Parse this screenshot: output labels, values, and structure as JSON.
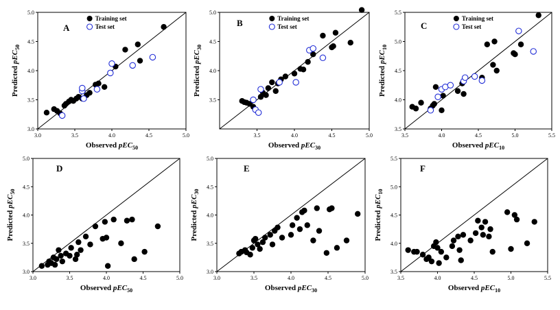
{
  "chart_data": [
    {
      "panel": "A",
      "type": "scatter",
      "xlabel_main": "Observed",
      "xlabel_em": "pEC",
      "xlabel_sub": "50",
      "ylabel_main": "Predicted",
      "ylabel_em": "pEC",
      "ylabel_sub": "50",
      "xlim": [
        3.0,
        5.0
      ],
      "ylim": [
        3.0,
        5.0
      ],
      "xticks": [
        "3.0",
        "3.5",
        "4.0",
        "4.5",
        "5.0"
      ],
      "yticks": [
        "3.0",
        "3.5",
        "4.0",
        "4.5",
        "5.0"
      ],
      "diagonal": true,
      "legend": "top-left",
      "series": [
        {
          "name": "Training set",
          "marker": "filled",
          "points": [
            [
              3.12,
              3.28
            ],
            [
              3.22,
              3.34
            ],
            [
              3.26,
              3.31
            ],
            [
              3.3,
              3.27
            ],
            [
              3.36,
              3.4
            ],
            [
              3.38,
              3.43
            ],
            [
              3.42,
              3.47
            ],
            [
              3.45,
              3.5
            ],
            [
              3.48,
              3.48
            ],
            [
              3.52,
              3.52
            ],
            [
              3.55,
              3.55
            ],
            [
              3.6,
              3.52
            ],
            [
              3.66,
              3.58
            ],
            [
              3.7,
              3.62
            ],
            [
              3.78,
              3.76
            ],
            [
              3.82,
              3.78
            ],
            [
              3.9,
              3.72
            ],
            [
              4.05,
              4.07
            ],
            [
              4.18,
              4.36
            ],
            [
              4.35,
              4.45
            ],
            [
              4.38,
              4.17
            ],
            [
              4.7,
              4.75
            ]
          ]
        },
        {
          "name": "Test set",
          "marker": "open",
          "points": [
            [
              3.33,
              3.23
            ],
            [
              3.6,
              3.65
            ],
            [
              3.6,
              3.7
            ],
            [
              3.62,
              3.52
            ],
            [
              3.8,
              3.68
            ],
            [
              3.98,
              3.96
            ],
            [
              4.0,
              4.12
            ],
            [
              4.28,
              4.09
            ],
            [
              4.55,
              4.23
            ]
          ]
        }
      ]
    },
    {
      "panel": "B",
      "type": "scatter",
      "xlabel_main": "Observed",
      "xlabel_em": "pEC",
      "xlabel_sub": "30",
      "ylabel_main": "Predicted",
      "ylabel_em": "pEC",
      "ylabel_sub": "30",
      "xlim": [
        3.0,
        5.0
      ],
      "ylim": [
        3.0,
        5.0
      ],
      "xticks": [
        "3.5",
        "4.0",
        "4.5",
        "5.0"
      ],
      "yticks": [
        "3.5",
        "4.0",
        "4.5",
        "5.0"
      ],
      "diagonal": true,
      "legend": "top-left",
      "series": [
        {
          "name": "Training set",
          "marker": "filled",
          "points": [
            [
              3.3,
              3.48
            ],
            [
              3.33,
              3.46
            ],
            [
              3.36,
              3.45
            ],
            [
              3.4,
              3.43
            ],
            [
              3.45,
              3.38
            ],
            [
              3.55,
              3.55
            ],
            [
              3.58,
              3.62
            ],
            [
              3.62,
              3.58
            ],
            [
              3.65,
              3.7
            ],
            [
              3.7,
              3.8
            ],
            [
              3.75,
              3.65
            ],
            [
              3.78,
              3.78
            ],
            [
              3.82,
              3.85
            ],
            [
              3.88,
              3.9
            ],
            [
              4.0,
              3.95
            ],
            [
              4.08,
              4.03
            ],
            [
              4.12,
              4.02
            ],
            [
              4.18,
              4.15
            ],
            [
              4.25,
              4.28
            ],
            [
              4.38,
              4.6
            ],
            [
              4.5,
              4.4
            ],
            [
              4.52,
              4.42
            ],
            [
              4.55,
              4.65
            ],
            [
              4.75,
              4.48
            ],
            [
              4.9,
              5.04
            ]
          ]
        },
        {
          "name": "Test set",
          "marker": "open",
          "points": [
            [
              3.45,
              3.5
            ],
            [
              3.48,
              3.33
            ],
            [
              3.52,
              3.28
            ],
            [
              3.55,
              3.68
            ],
            [
              3.8,
              3.8
            ],
            [
              4.02,
              3.8
            ],
            [
              4.2,
              4.35
            ],
            [
              4.25,
              4.38
            ],
            [
              4.38,
              4.22
            ]
          ]
        }
      ]
    },
    {
      "panel": "C",
      "type": "scatter",
      "xlabel_main": "Observed",
      "xlabel_em": "pEC",
      "xlabel_sub": "10",
      "ylabel_main": "Predicted",
      "ylabel_em": "pEC",
      "ylabel_sub": "10",
      "xlim": [
        3.5,
        5.5
      ],
      "ylim": [
        3.5,
        5.5
      ],
      "xticks": [
        "3.5",
        "4.0",
        "4.5",
        "5.0",
        "5.5"
      ],
      "yticks": [
        "3.5",
        "4.0",
        "4.5",
        "5.0",
        "5.5"
      ],
      "diagonal": true,
      "legend": "top-left",
      "series": [
        {
          "name": "Training set",
          "marker": "filled",
          "points": [
            [
              3.6,
              3.88
            ],
            [
              3.65,
              3.85
            ],
            [
              3.72,
              3.95
            ],
            [
              3.85,
              3.85
            ],
            [
              3.88,
              3.9
            ],
            [
              3.9,
              3.93
            ],
            [
              3.92,
              4.22
            ],
            [
              4.0,
              3.82
            ],
            [
              4.02,
              4.07
            ],
            [
              4.22,
              4.15
            ],
            [
              4.28,
              4.28
            ],
            [
              4.3,
              4.1
            ],
            [
              4.55,
              4.38
            ],
            [
              4.62,
              4.95
            ],
            [
              4.7,
              4.6
            ],
            [
              4.72,
              5.0
            ],
            [
              4.75,
              4.5
            ],
            [
              4.98,
              4.8
            ],
            [
              5.0,
              4.78
            ],
            [
              5.08,
              4.95
            ],
            [
              5.32,
              5.45
            ]
          ]
        },
        {
          "name": "Test set",
          "marker": "open",
          "points": [
            [
              3.85,
              3.82
            ],
            [
              3.95,
              4.05
            ],
            [
              4.0,
              4.18
            ],
            [
              4.05,
              4.22
            ],
            [
              4.12,
              4.25
            ],
            [
              4.3,
              4.32
            ],
            [
              4.32,
              4.38
            ],
            [
              4.45,
              4.4
            ],
            [
              4.55,
              4.33
            ],
            [
              5.05,
              5.18
            ],
            [
              5.25,
              4.83
            ]
          ]
        }
      ]
    },
    {
      "panel": "D",
      "type": "scatter",
      "xlabel_main": "Observed",
      "xlabel_em": "pEC",
      "xlabel_sub": "50",
      "ylabel_main": "Predicted",
      "ylabel_em": "pEC",
      "ylabel_sub": "50",
      "xlim": [
        3.0,
        5.0
      ],
      "ylim": [
        3.0,
        5.0
      ],
      "xticks": [
        "3.0",
        "3.5",
        "4.0",
        "4.5",
        "5.0"
      ],
      "yticks": [
        "3.0",
        "3.5",
        "4.0",
        "4.5",
        "5.0"
      ],
      "diagonal": true,
      "legend": "none",
      "series": [
        {
          "name": "",
          "marker": "filled",
          "points": [
            [
              3.12,
              3.1
            ],
            [
              3.2,
              3.12
            ],
            [
              3.22,
              3.18
            ],
            [
              3.25,
              3.15
            ],
            [
              3.28,
              3.25
            ],
            [
              3.3,
              3.12
            ],
            [
              3.32,
              3.22
            ],
            [
              3.35,
              3.38
            ],
            [
              3.38,
              3.28
            ],
            [
              3.4,
              3.18
            ],
            [
              3.45,
              3.32
            ],
            [
              3.5,
              3.28
            ],
            [
              3.52,
              3.42
            ],
            [
              3.58,
              3.22
            ],
            [
              3.6,
              3.3
            ],
            [
              3.62,
              3.52
            ],
            [
              3.65,
              3.38
            ],
            [
              3.72,
              3.62
            ],
            [
              3.78,
              3.48
            ],
            [
              3.85,
              3.8
            ],
            [
              3.95,
              3.58
            ],
            [
              3.98,
              3.88
            ],
            [
              4.0,
              3.6
            ],
            [
              4.02,
              3.1
            ],
            [
              4.1,
              3.92
            ],
            [
              4.2,
              3.5
            ],
            [
              4.28,
              3.9
            ],
            [
              4.35,
              3.92
            ],
            [
              4.38,
              3.22
            ],
            [
              4.52,
              3.35
            ],
            [
              4.7,
              3.8
            ]
          ]
        }
      ]
    },
    {
      "panel": "E",
      "type": "scatter",
      "xlabel_main": "Observed",
      "xlabel_em": "pEC",
      "xlabel_sub": "30",
      "ylabel_main": "Predicted",
      "ylabel_em": "pEC",
      "ylabel_sub": "30",
      "xlim": [
        3.0,
        5.0
      ],
      "ylim": [
        3.0,
        5.0
      ],
      "xticks": [
        "3.0",
        "3.5",
        "4.0",
        "4.5",
        "5.0"
      ],
      "yticks": [
        "3.0",
        "3.5",
        "4.0",
        "4.5",
        "5.0"
      ],
      "diagonal": true,
      "legend": "none",
      "series": [
        {
          "name": "",
          "marker": "filled",
          "points": [
            [
              3.3,
              3.32
            ],
            [
              3.33,
              3.35
            ],
            [
              3.38,
              3.38
            ],
            [
              3.4,
              3.34
            ],
            [
              3.45,
              3.3
            ],
            [
              3.48,
              3.42
            ],
            [
              3.5,
              3.55
            ],
            [
              3.52,
              3.58
            ],
            [
              3.55,
              3.48
            ],
            [
              3.58,
              3.4
            ],
            [
              3.62,
              3.52
            ],
            [
              3.65,
              3.6
            ],
            [
              3.72,
              3.65
            ],
            [
              3.75,
              3.48
            ],
            [
              3.78,
              3.72
            ],
            [
              3.82,
              3.78
            ],
            [
              3.88,
              3.6
            ],
            [
              4.0,
              3.65
            ],
            [
              4.02,
              3.82
            ],
            [
              4.08,
              3.95
            ],
            [
              4.12,
              3.75
            ],
            [
              4.15,
              4.05
            ],
            [
              4.18,
              4.08
            ],
            [
              4.22,
              3.82
            ],
            [
              4.3,
              3.55
            ],
            [
              4.35,
              4.12
            ],
            [
              4.38,
              3.72
            ],
            [
              4.48,
              3.33
            ],
            [
              4.52,
              4.1
            ],
            [
              4.55,
              4.12
            ],
            [
              4.62,
              3.42
            ],
            [
              4.75,
              3.55
            ],
            [
              4.9,
              4.02
            ]
          ]
        }
      ]
    },
    {
      "panel": "F",
      "type": "scatter",
      "xlabel_main": "Observed",
      "xlabel_em": "pEC",
      "xlabel_sub": "10",
      "ylabel_main": "Predicted",
      "ylabel_em": "pEC",
      "ylabel_sub": "10",
      "xlim": [
        3.5,
        5.5
      ],
      "ylim": [
        3.5,
        5.5
      ],
      "xticks": [
        "3.5",
        "4.0",
        "4.5",
        "5.0",
        "5.5"
      ],
      "yticks": [
        "3.5",
        "4.0",
        "4.5",
        "5.0",
        "5.5"
      ],
      "diagonal": true,
      "legend": "none",
      "series": [
        {
          "name": "",
          "marker": "filled",
          "points": [
            [
              3.6,
              3.88
            ],
            [
              3.68,
              3.85
            ],
            [
              3.72,
              3.85
            ],
            [
              3.8,
              3.8
            ],
            [
              3.85,
              3.72
            ],
            [
              3.88,
              3.75
            ],
            [
              3.92,
              3.68
            ],
            [
              3.95,
              3.95
            ],
            [
              3.98,
              4.02
            ],
            [
              4.0,
              3.92
            ],
            [
              4.02,
              3.65
            ],
            [
              4.05,
              3.85
            ],
            [
              4.12,
              3.75
            ],
            [
              4.2,
              3.95
            ],
            [
              4.22,
              4.05
            ],
            [
              4.28,
              4.12
            ],
            [
              4.3,
              3.88
            ],
            [
              4.32,
              3.7
            ],
            [
              4.35,
              4.15
            ],
            [
              4.45,
              4.05
            ],
            [
              4.52,
              4.18
            ],
            [
              4.55,
              4.4
            ],
            [
              4.6,
              4.28
            ],
            [
              4.62,
              4.15
            ],
            [
              4.65,
              4.38
            ],
            [
              4.7,
              4.12
            ],
            [
              4.72,
              4.25
            ],
            [
              4.75,
              3.85
            ],
            [
              4.95,
              4.55
            ],
            [
              5.0,
              3.9
            ],
            [
              5.05,
              4.5
            ],
            [
              5.08,
              4.42
            ],
            [
              5.22,
              4.0
            ],
            [
              5.32,
              4.38
            ]
          ]
        }
      ]
    }
  ]
}
